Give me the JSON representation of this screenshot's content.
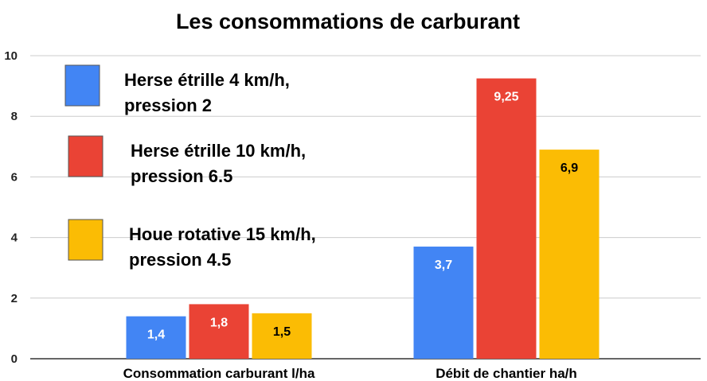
{
  "chart_data": {
    "type": "bar",
    "title": "Les consommations de carburant",
    "categories": [
      "Consommation carburant l/ha",
      "Débit de chantier ha/h"
    ],
    "series": [
      {
        "name_lines": [
          "Herse étrille 4 km/h,",
          "pression 2"
        ],
        "color": "#4285F4",
        "values": [
          1.4,
          3.7
        ],
        "labels": [
          "1,4",
          "3,7"
        ],
        "label_color": "#ffffff"
      },
      {
        "name_lines": [
          "Herse étrille 10 km/h,",
          "pression 6.5"
        ],
        "color": "#EA4335",
        "values": [
          1.8,
          9.25
        ],
        "labels": [
          "1,8",
          "9,25"
        ],
        "label_color": "#ffffff"
      },
      {
        "name_lines": [
          "Houe rotative 15 km/h,",
          "pression 4.5"
        ],
        "color": "#FBBC04",
        "values": [
          1.5,
          6.9
        ],
        "labels": [
          "1,5",
          "6,9"
        ],
        "label_color": "#000000"
      }
    ],
    "ylim": [
      0,
      10
    ],
    "yticks": [
      "0",
      "2",
      "4",
      "6",
      "8",
      "10"
    ],
    "grid": true,
    "legend_position": "top-left"
  }
}
